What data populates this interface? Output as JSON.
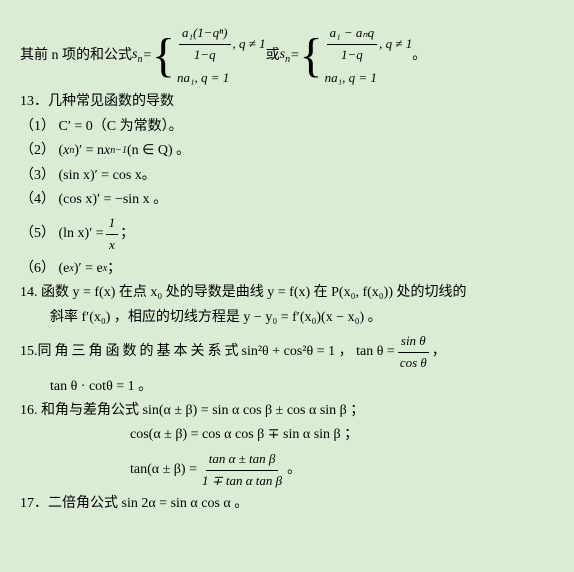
{
  "background_color": "#dbecd5",
  "text_color": "#000000",
  "font_size": 14,
  "l1_prefix": "其前 n 项的和公式",
  "sn": "s",
  "sn_sub": "n",
  "eq": "=",
  "b1_top_num": "a₁(1−qⁿ)",
  "b1_top_den": "1−q",
  "b1_top_cond": ", q ≠ 1",
  "b1_bot": "na₁, q = 1",
  "or": "或",
  "b2_top_num": "a₁ − aₙq",
  "b2_top_den": "1−q",
  "b2_top_cond": ", q ≠ 1",
  "b2_bot": "na₁, q = 1",
  "period": "。",
  "h13": "13．几种常见函数的导数",
  "i13_1": "（1） C′ = 0（C 为常数）。",
  "i13_2a": "（2） (",
  "i13_2b": "x",
  "i13_2c": ")′ = n",
  "i13_2d": "x",
  "i13_2e": "(n ∈ Q) 。",
  "sup_n": "n",
  "sup_nm1": "n−1",
  "i13_3": "（3） (sin x)′ = cos x。",
  "i13_4": "（4） (cos x)′ = −sin x 。",
  "i13_5a": "（5）  (ln x)′ = ",
  "i13_5_num": "1",
  "i13_5_den": "x",
  "i13_5b": " ；",
  "i13_6a": "（6） (e",
  "i13_6sup": "x",
  "i13_6b": ")′ = e",
  "i13_6c": " ；",
  "h14a": "14. 函数 y = f(x) 在点 x₀ 处的导数是曲线 y = f(x) 在 P(x₀, f(x₀)) 处的切线的",
  "h14b": "斜率 f′(x₀) ，相应的切线方程是 y − y₀ = f′(x₀)(x − x₀) 。",
  "h15a": "15. ",
  "h15spaced": "同角三角函数的基本关系式",
  "h15b": "   sin²θ + cos²θ = 1 ，  tan θ  =  ",
  "h15_num": "sin θ",
  "h15_den": "cos θ",
  "h15c": " ，",
  "h15d": "tan θ · cotθ = 1 。",
  "h16a": "16. 和角与差角公式  sin(α ± β) = sin α cos β ± cos α sin β ；",
  "h16b": "cos(α ± β) = cos α cos β ∓ sin α sin β ；",
  "h16c_a": "tan(α ± β) = ",
  "h16c_num": "tan α ± tan β",
  "h16c_den": "1 ∓ tan α tan β",
  "h16c_b": "。",
  "h17": "17．二倍角公式   sin 2α = sin α cos α 。"
}
